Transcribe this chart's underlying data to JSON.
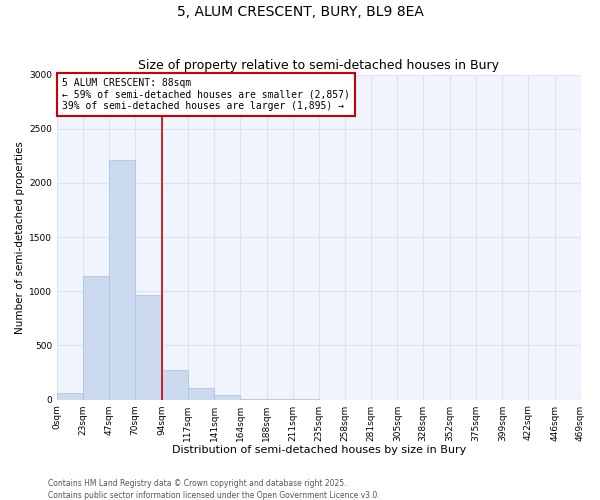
{
  "title": "5, ALUM CRESCENT, BURY, BL9 8EA",
  "subtitle": "Size of property relative to semi-detached houses in Bury",
  "xlabel": "Distribution of semi-detached houses by size in Bury",
  "ylabel": "Number of semi-detached properties",
  "bar_edges": [
    0,
    23,
    47,
    70,
    94,
    117,
    141,
    164,
    188,
    211,
    235,
    258,
    281,
    305,
    328,
    352,
    375,
    399,
    422,
    446,
    469
  ],
  "bar_heights": [
    60,
    1140,
    2210,
    970,
    270,
    110,
    40,
    5,
    2,
    1,
    0,
    0,
    0,
    0,
    0,
    0,
    0,
    0,
    0,
    0
  ],
  "bar_color": "#ccdaf0",
  "bar_edge_color": "#a8c0e0",
  "vline_x": 94,
  "vline_color": "#cc0000",
  "annotation_title": "5 ALUM CRESCENT: 88sqm",
  "annotation_line1": "← 59% of semi-detached houses are smaller (2,857)",
  "annotation_line2": "39% of semi-detached houses are larger (1,895) →",
  "annotation_box_color": "#cc0000",
  "ylim": [
    0,
    3000
  ],
  "yticks": [
    0,
    500,
    1000,
    1500,
    2000,
    2500,
    3000
  ],
  "xtick_labels": [
    "0sqm",
    "23sqm",
    "47sqm",
    "70sqm",
    "94sqm",
    "117sqm",
    "141sqm",
    "164sqm",
    "188sqm",
    "211sqm",
    "235sqm",
    "258sqm",
    "281sqm",
    "305sqm",
    "328sqm",
    "352sqm",
    "375sqm",
    "399sqm",
    "422sqm",
    "446sqm",
    "469sqm"
  ],
  "background_color": "#ffffff",
  "plot_bg_color": "#f0f4fc",
  "grid_color": "#dde4f0",
  "footer1": "Contains HM Land Registry data © Crown copyright and database right 2025.",
  "footer2": "Contains public sector information licensed under the Open Government Licence v3.0.",
  "title_fontsize": 10,
  "subtitle_fontsize": 9,
  "xlabel_fontsize": 8,
  "ylabel_fontsize": 7.5,
  "tick_fontsize": 6.5,
  "annot_fontsize": 7,
  "footer_fontsize": 5.5
}
